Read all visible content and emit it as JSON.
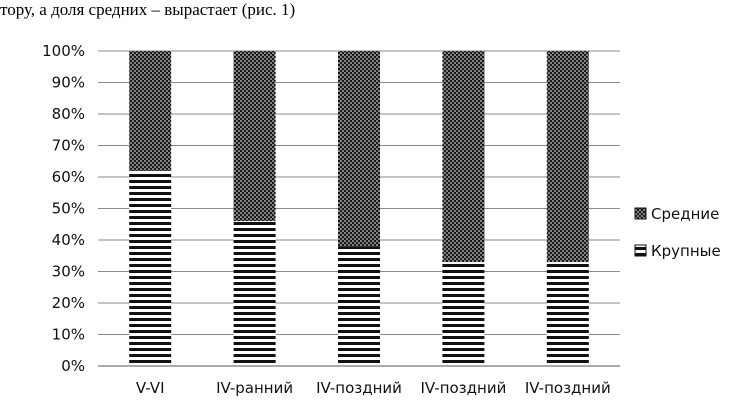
{
  "caption_text": "тору, а доля средних – вырастает (рис. 1)",
  "chart_data": {
    "type": "bar",
    "stacked": true,
    "categories": [
      "V-VI",
      "IV-ранний",
      "IV-поздний",
      "IV-поздний",
      "IV-поздний"
    ],
    "series": [
      {
        "name": "Крупные",
        "values": [
          62,
          46,
          38,
          33,
          33
        ],
        "pattern": "horizontal-stripes"
      },
      {
        "name": "Средние",
        "values": [
          38,
          54,
          62,
          67,
          67
        ],
        "pattern": "dots"
      }
    ],
    "ylim": [
      0,
      100
    ],
    "yticks": [
      "0%",
      "10%",
      "20%",
      "30%",
      "40%",
      "50%",
      "60%",
      "70%",
      "80%",
      "90%",
      "100%"
    ],
    "grid": true,
    "legend_position": "right"
  }
}
